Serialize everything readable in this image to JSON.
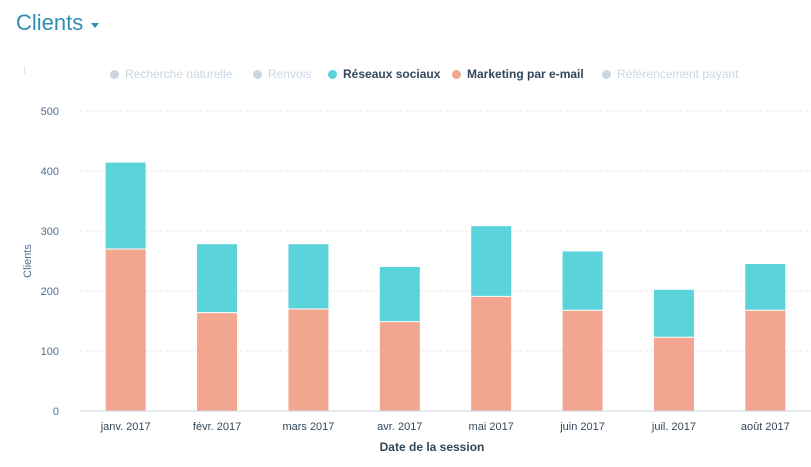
{
  "report": {
    "title": "Clients"
  },
  "legend": [
    {
      "label": "Recherche naturelle",
      "color": "#cbd6e2",
      "active": false
    },
    {
      "label": "Renvois",
      "color": "#cbd6e2",
      "active": false
    },
    {
      "label": "Réseaux sociaux",
      "color": "#5bd3db",
      "active": true
    },
    {
      "label": "Marketing par e-mail",
      "color": "#f2a68f",
      "active": true
    },
    {
      "label": "Référencement payant",
      "color": "#cbd6e2",
      "active": false
    }
  ],
  "chart_data": {
    "type": "bar",
    "stacked": true,
    "categories": [
      "janv. 2017",
      "févr. 2017",
      "mars 2017",
      "avr. 2017",
      "mai 2017",
      "juin 2017",
      "juil. 2017",
      "août 2017"
    ],
    "series": [
      {
        "name": "Marketing par e-mail",
        "color": "#f2a68f",
        "values": [
          270,
          164,
          170,
          149,
          191,
          168,
          123,
          168
        ]
      },
      {
        "name": "Réseaux sociaux",
        "color": "#5bd3db",
        "values": [
          144,
          114,
          108,
          91,
          117,
          98,
          79,
          77
        ]
      }
    ],
    "xlabel": "Date de la session",
    "ylabel": "Clients",
    "ylim": [
      0,
      500
    ],
    "yticks": [
      0,
      100,
      200,
      300,
      400,
      500
    ],
    "grid": true
  }
}
